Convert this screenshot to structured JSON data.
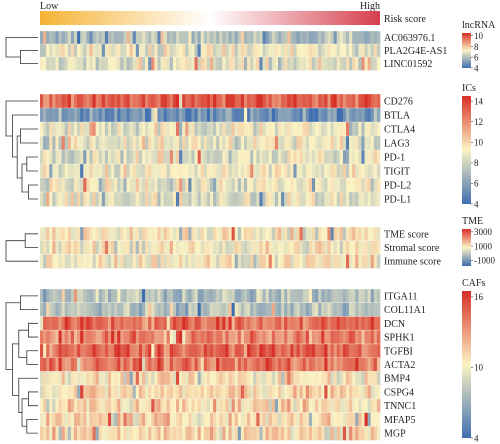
{
  "chart_data": {
    "type": "heatmap",
    "risk_bar": {
      "low_label": "Low",
      "high_label": "High",
      "row_label": "Risk score"
    },
    "colors": {
      "low": "#3f6eb0",
      "mid": "#fbf3c3",
      "high": "#d73027"
    },
    "risk_colors": {
      "low": "#f5b335",
      "high": "#d6404e"
    },
    "panels": [
      {
        "id": "lncrna",
        "legend_title": "lncRNA",
        "legend_ticks": [
          10,
          8,
          6,
          4
        ],
        "value_range": [
          4,
          10.5
        ],
        "row_means": [
          6.0,
          7.0,
          6.9
        ],
        "rows": [
          "AC063976.1",
          "PLA2G4E-AS1",
          "LINC01592"
        ]
      },
      {
        "id": "ics",
        "legend_title": "ICs",
        "legend_ticks": [
          14,
          12,
          10,
          8,
          6,
          4
        ],
        "value_range": [
          4,
          14.5
        ],
        "row_means": [
          13.3,
          5.5,
          8.8,
          8.9,
          8.8,
          8.9,
          8.8,
          8.7
        ],
        "rows": [
          "CD276",
          "BTLA",
          "CTLA4",
          "LAG3",
          "PD-1",
          "TIGIT",
          "PD-L2",
          "PD-L1"
        ]
      },
      {
        "id": "tme",
        "legend_title": "TME",
        "legend_ticks": [
          3000,
          1000,
          -1000
        ],
        "value_range": [
          -1800,
          3400
        ],
        "row_means": [
          900,
          800,
          850
        ],
        "rows": [
          "TME score",
          "Stromal score",
          "Immune score"
        ]
      },
      {
        "id": "cafs",
        "legend_title": "CAFs",
        "legend_ticks": [
          16,
          10,
          4
        ],
        "value_range": [
          4,
          16.5
        ],
        "row_means": [
          8.0,
          8.0,
          14.5,
          13.8,
          14.6,
          14.2,
          10.6,
          11.0,
          11.0,
          11.0,
          11.2
        ],
        "rows": [
          "ITGA11",
          "COL11A1",
          "DCN",
          "SPHK1",
          "TGFBI",
          "ACTA2",
          "BMP4",
          "CSPG4",
          "TNNC1",
          "MFAP5",
          "MGP"
        ]
      }
    ]
  }
}
